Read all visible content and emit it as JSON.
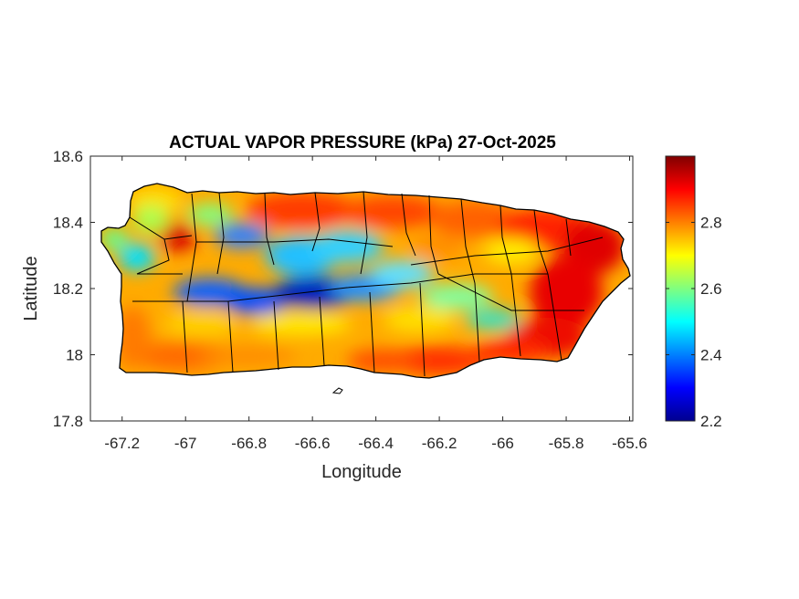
{
  "chart_data": {
    "type": "heatmap",
    "title": "ACTUAL VAPOR PRESSURE (kPa) 27-Oct-2025",
    "xlabel": "Longitude",
    "ylabel": "Latitude",
    "xlim": [
      -67.3,
      -65.59
    ],
    "ylim": [
      17.8,
      18.6
    ],
    "x_ticks": [
      -67.2,
      -67,
      -66.8,
      -66.6,
      -66.4,
      -66.2,
      -66,
      -65.8,
      -65.6
    ],
    "x_tick_labels": [
      "-67.2",
      "-67",
      "-66.8",
      "-66.6",
      "-66.4",
      "-66.2",
      "-66",
      "-65.8",
      "-65.6"
    ],
    "y_ticks": [
      17.8,
      18,
      18.2,
      18.4,
      18.6
    ],
    "y_tick_labels": [
      "17.8",
      "18",
      "18.2",
      "18.4",
      "18.6"
    ],
    "colorbar": {
      "colormap": "jet",
      "clim": [
        2.2,
        3.0
      ],
      "ticks": [
        2.2,
        2.4,
        2.6,
        2.8
      ],
      "tick_labels": [
        "2.2",
        "2.4",
        "2.6",
        "2.8"
      ]
    },
    "grid": false
  }
}
